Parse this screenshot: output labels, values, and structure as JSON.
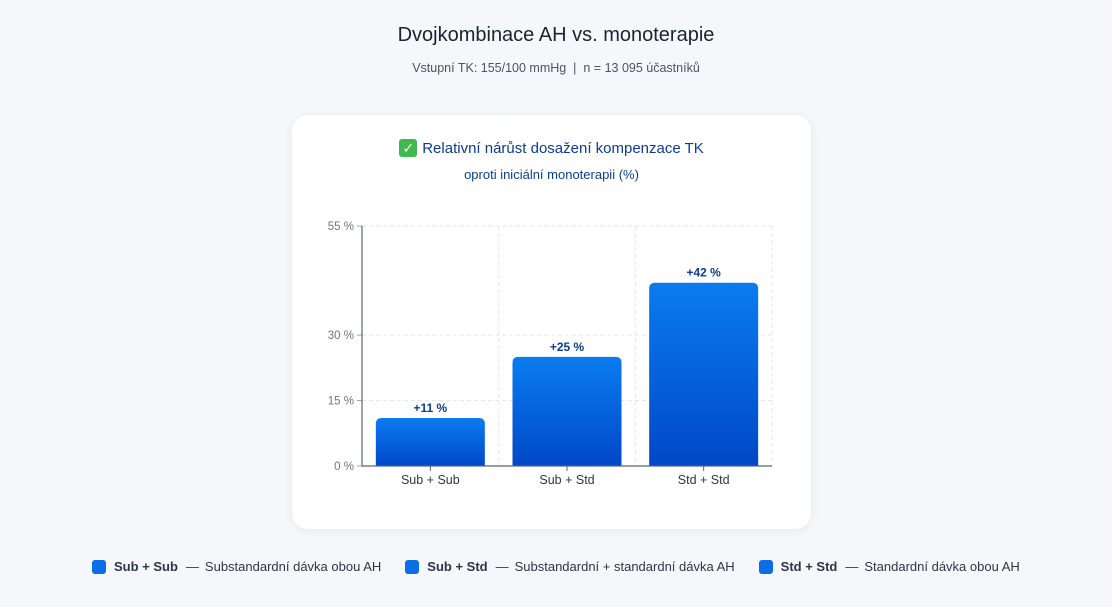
{
  "page": {
    "title": "Dvojkombinace AH vs. monoterapie",
    "subtitle": "Vstupní TK: 155/100 mmHg  |  n = 13 095 účastníků"
  },
  "card": {
    "icon": "check-mark-icon",
    "title": "Relativní nárůst dosažení kompenzace TK",
    "subtitle": "oproti iniciální monoterapii (%)"
  },
  "chart_data": {
    "type": "bar",
    "categories": [
      "Sub + Sub",
      "Sub + Std",
      "Std + Std"
    ],
    "values": [
      11,
      25,
      42
    ],
    "value_labels": [
      "+11 %",
      "+25 %",
      "+42 %"
    ],
    "yticks": [
      0,
      15,
      30,
      55
    ],
    "ytick_labels": [
      "0 %",
      "15 %",
      "30 %",
      "55 %"
    ],
    "ylim": [
      0,
      55
    ],
    "grid": true,
    "bar_color_top": "#0a7cf0",
    "bar_color_bottom": "#0048c8"
  },
  "legend": [
    {
      "name": "Sub + Sub",
      "dash": "—",
      "desc": "Substandardní dávka obou AH"
    },
    {
      "name": "Sub + Std",
      "dash": "—",
      "desc": "Substandardní + standardní dávka AH"
    },
    {
      "name": "Std + Std",
      "dash": "—",
      "desc": "Standardní dávka obou AH"
    }
  ]
}
